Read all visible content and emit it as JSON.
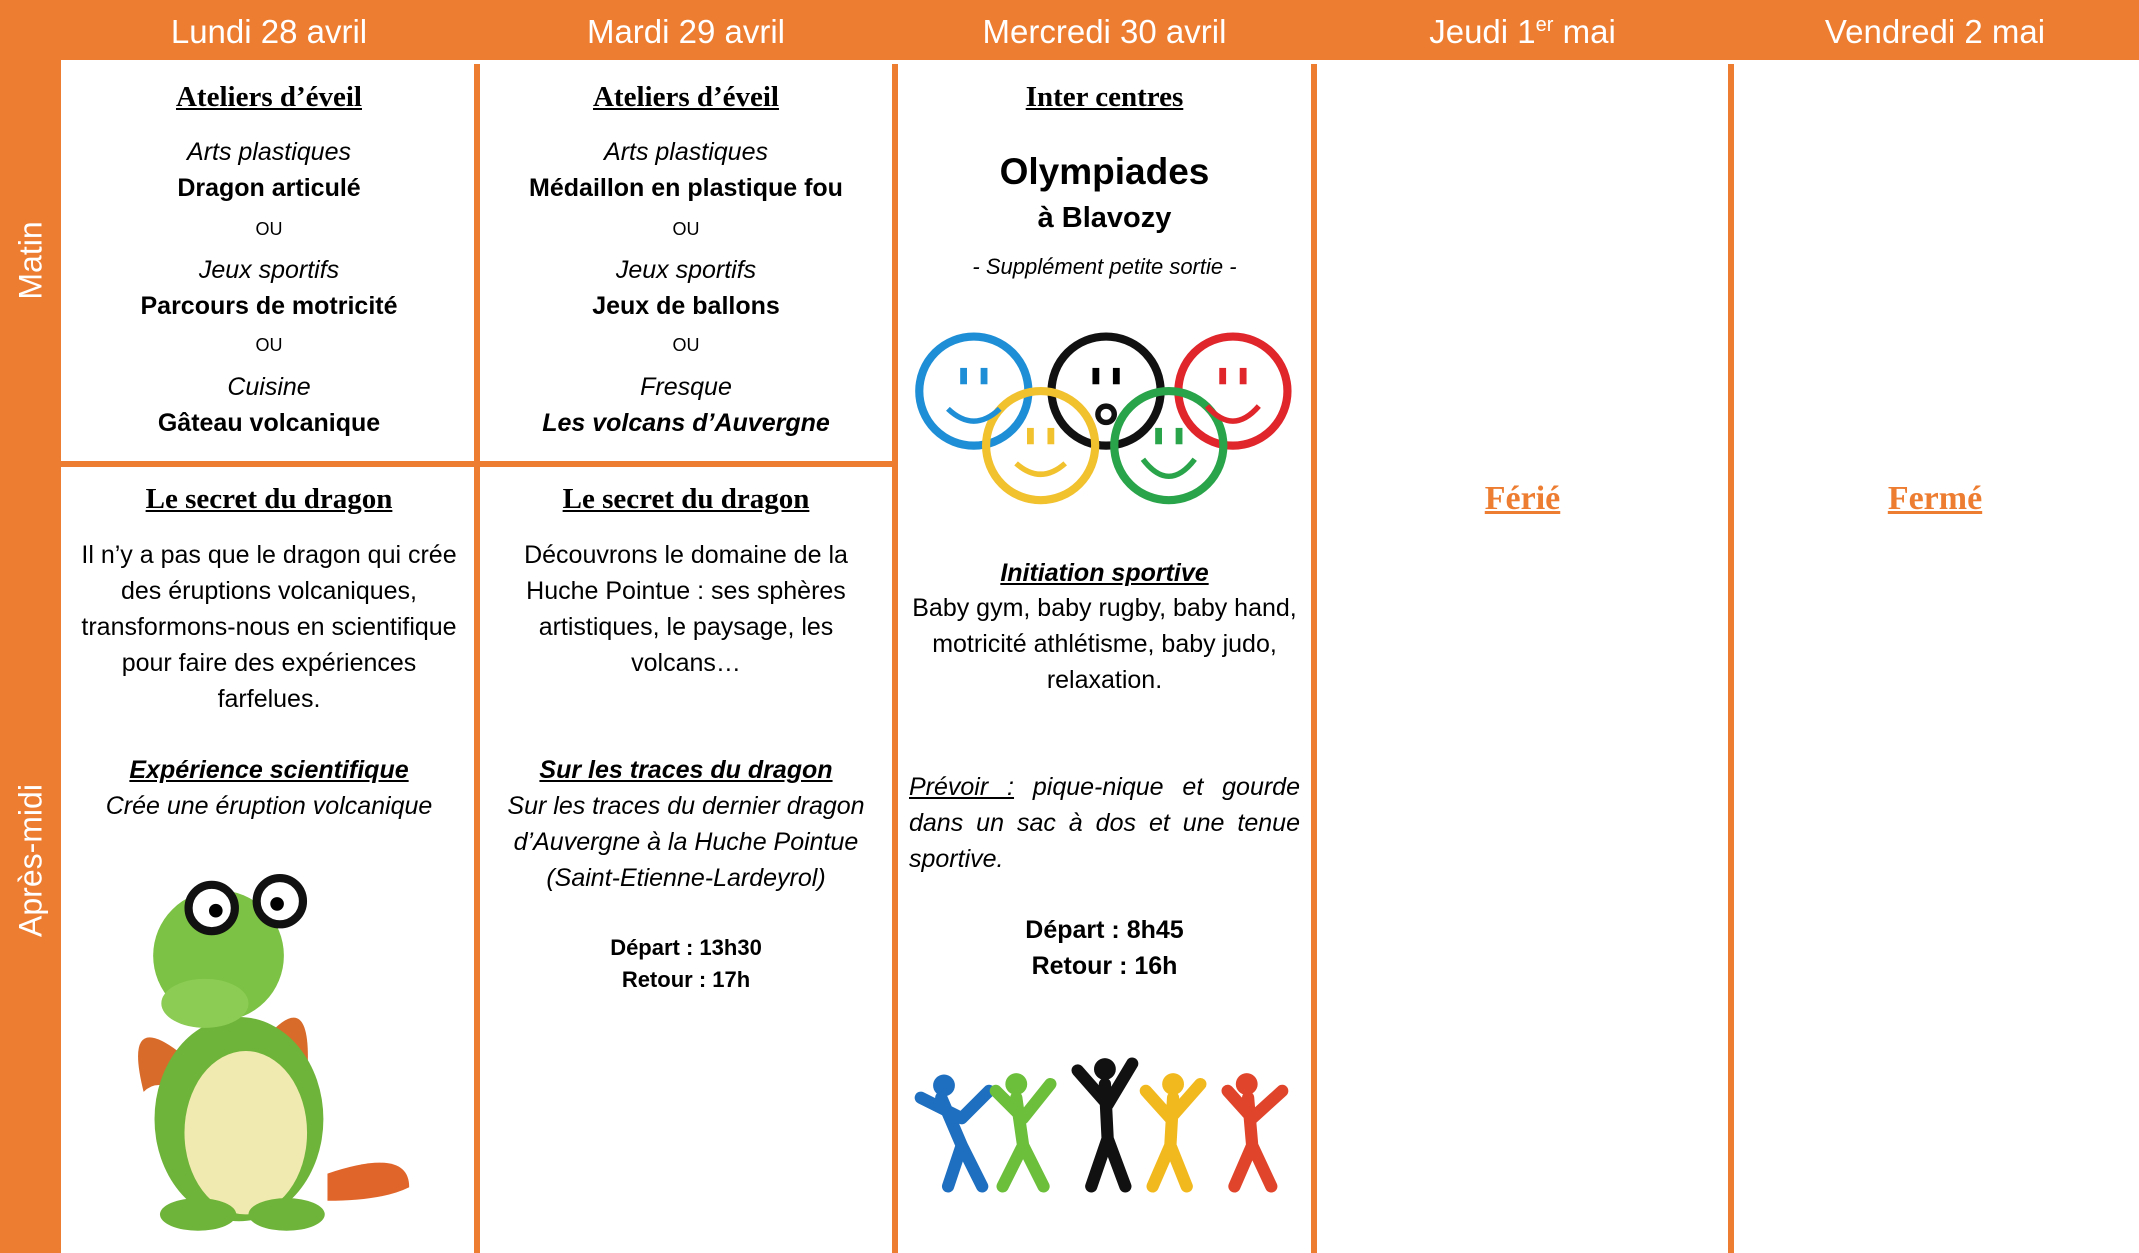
{
  "header": {
    "days": [
      {
        "label": "Lundi 28 avril"
      },
      {
        "label": "Mardi 29 avril"
      },
      {
        "label": "Mercredi 30 avril"
      },
      {
        "label": "Jeudi 1",
        "superscript": "er",
        "suffix": " mai"
      },
      {
        "label": "Vendredi 2 mai"
      }
    ],
    "periods": [
      "Matin",
      "Après-midi"
    ]
  },
  "monday": {
    "morning": {
      "title": "Ateliers d’éveil",
      "separator": "OU",
      "options": [
        {
          "category": "Arts plastiques",
          "activity": "Dragon articulé"
        },
        {
          "category": "Jeux sportifs",
          "activity": "Parcours de motricité"
        },
        {
          "category": "Cuisine",
          "activity": "Gâteau volcanique"
        }
      ]
    },
    "afternoon": {
      "title": "Le secret du dragon",
      "text": "Il n’y a pas que le dragon qui crée des éruptions volcaniques, transformons-nous en scientifique pour faire des expériences farfelues.",
      "subtitle": "Expérience scientifique",
      "subtext": "Crée une éruption volcanique"
    }
  },
  "tuesday": {
    "morning": {
      "title": "Ateliers d’éveil",
      "separator": "OU",
      "options": [
        {
          "category": "Arts plastiques",
          "activity": "Médaillon en plastique fou"
        },
        {
          "category": "Jeux sportifs",
          "activity": "Jeux de ballons"
        },
        {
          "category": "Fresque",
          "activity": "Les volcans d’Auvergne"
        }
      ]
    },
    "afternoon": {
      "title": "Le secret du dragon",
      "text": "Découvrons le domaine de la Huche Pointue : ses sphères artistiques, le paysage, les volcans…",
      "subtitle": "Sur les traces du dragon",
      "subtext": "Sur les traces du dernier dragon d’Auvergne à la Huche Pointue (Saint-Etienne-Lardeyrol)",
      "departure": "Départ : 13h30",
      "return": "Retour : 17h"
    }
  },
  "wednesday": {
    "title": "Inter centres",
    "event": "Olympiades",
    "place": "à Blavozy",
    "note": "- Supplément petite sortie -",
    "subtitle": "Initiation sportive",
    "text": "Baby gym, baby rugby, baby hand, motricité athlétisme, baby judo, relaxation.",
    "prevoir_label": "Prévoir :",
    "prevoir_text": "pique-nique et gourde dans un sac à dos et une tenue sportive.",
    "departure": "Départ : 8h45",
    "return": "Retour : 16h"
  },
  "thursday": {
    "status": "Férié"
  },
  "friday": {
    "status": "Fermé"
  }
}
